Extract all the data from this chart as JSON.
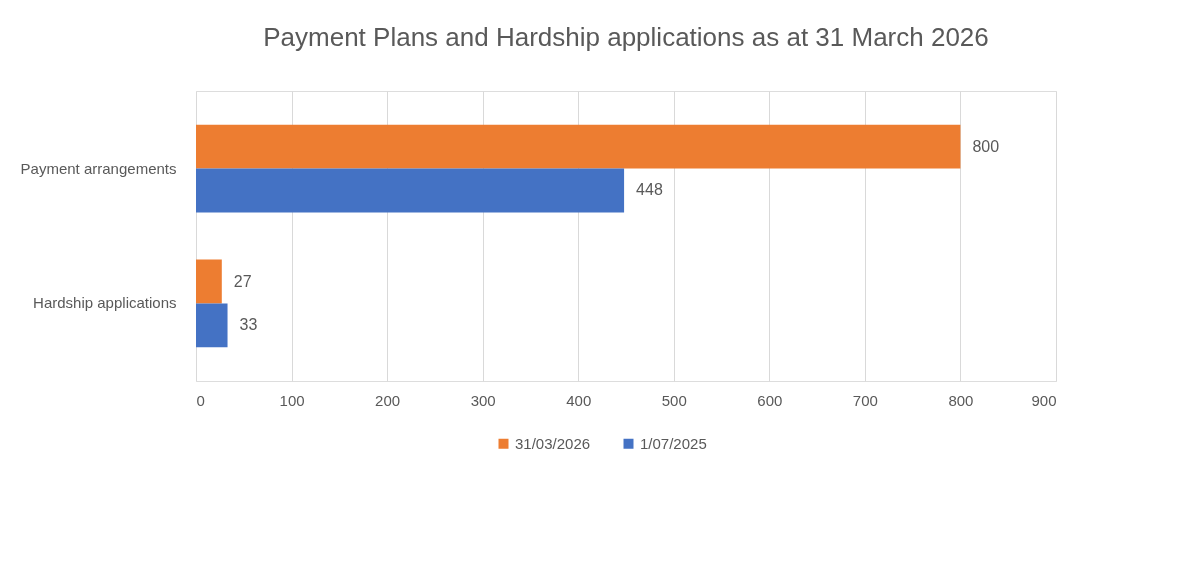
{
  "chart_data": {
    "type": "bar",
    "orientation": "horizontal",
    "title": "Payment Plans and Hardship applications as at 31 March 2026",
    "categories": [
      "Payment arrangements",
      "Hardship applications"
    ],
    "series": [
      {
        "name": "31/03/2026",
        "color": "#ed7d31",
        "values": [
          800,
          27
        ]
      },
      {
        "name": "1/07/2025",
        "color": "#4472c4",
        "values": [
          448,
          33
        ]
      }
    ],
    "xlim": [
      0,
      900
    ],
    "xticks": [
      0,
      100,
      200,
      300,
      400,
      500,
      600,
      700,
      800,
      900
    ],
    "grid": "x",
    "legend": "bottom",
    "data_labels": true
  }
}
